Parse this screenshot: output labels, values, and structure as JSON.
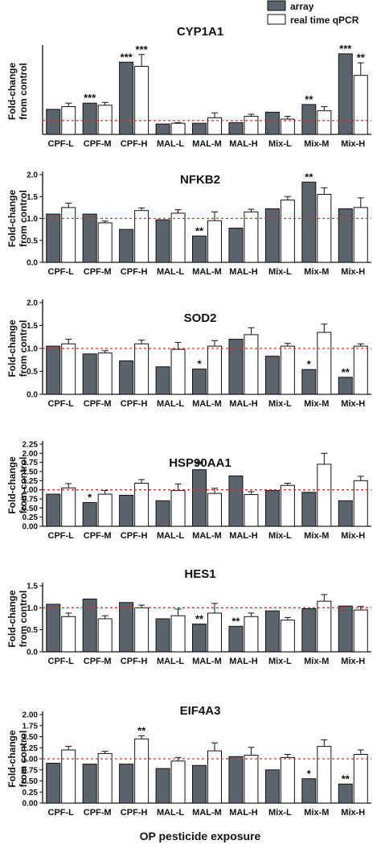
{
  "legend": [
    {
      "name": "array",
      "color": "#5d636d"
    },
    {
      "name": "real time qPCR",
      "color": "#ffffff"
    }
  ],
  "xlabel": "OP pesticide exposure",
  "colors": {
    "array": "#5d636d",
    "qpcr": "#ffffff",
    "reference_line": "#e0302a"
  },
  "chart_data": [
    {
      "type": "bar",
      "title": "CYP1A1",
      "ylabel": "Fold-change from control",
      "categories": [
        "CPF-L",
        "CPF-M",
        "CPF-H",
        "MAL-L",
        "MAL-M",
        "MAL-H",
        "Mix-L",
        "Mix-M",
        "Mix-H"
      ],
      "ylim": [
        0,
        6.2
      ],
      "yticks": [],
      "reference": 1.0,
      "series": [
        {
          "name": "array",
          "values": [
            1.8,
            2.25,
            5.2,
            0.75,
            0.8,
            0.85,
            1.6,
            2.15,
            5.8
          ],
          "errors": [
            0,
            0,
            0,
            0,
            0,
            0,
            0,
            0,
            0
          ],
          "stars": [
            "",
            "***",
            "***",
            "",
            "",
            "",
            "",
            "**",
            "***"
          ]
        },
        {
          "name": "real time qPCR",
          "values": [
            2.0,
            2.1,
            4.9,
            0.8,
            1.2,
            1.3,
            1.1,
            1.7,
            4.25
          ],
          "errors": [
            0.25,
            0.2,
            0.85,
            0.05,
            0.35,
            0.15,
            0.2,
            0.3,
            0.9
          ],
          "stars": [
            "",
            "",
            "***",
            "",
            "",
            "",
            "",
            "",
            "**"
          ]
        }
      ]
    },
    {
      "type": "bar",
      "title": "NFKB2",
      "ylabel": "Fold-change from control",
      "categories": [
        "CPF-L",
        "CPF-M",
        "CPF-H",
        "MAL-L",
        "MAL-M",
        "MAL-H",
        "Mix-L",
        "Mix-M",
        "Mix-H"
      ],
      "ylim": [
        0,
        2.0
      ],
      "yticks": [
        "0.0",
        "0.5",
        "1.0",
        "1.5",
        "2.0"
      ],
      "reference": 1.0,
      "series": [
        {
          "name": "array",
          "values": [
            1.1,
            1.1,
            0.75,
            0.97,
            0.6,
            0.78,
            1.22,
            1.83,
            1.22
          ],
          "errors": [
            0,
            0,
            0,
            0,
            0,
            0,
            0,
            0,
            0
          ],
          "stars": [
            "",
            "",
            "",
            "",
            "**",
            "",
            "",
            "**",
            ""
          ]
        },
        {
          "name": "real time qPCR",
          "values": [
            1.25,
            0.9,
            1.18,
            1.12,
            0.95,
            1.15,
            1.42,
            1.55,
            1.25
          ],
          "errors": [
            0.1,
            0.04,
            0.06,
            0.08,
            0.2,
            0.06,
            0.08,
            0.15,
            0.22
          ],
          "stars": [
            "",
            "",
            "",
            "",
            "",
            "",
            "",
            "",
            ""
          ]
        }
      ]
    },
    {
      "type": "bar",
      "title": "SOD2",
      "ylabel": "Fold-change from control",
      "categories": [
        "CPF-L",
        "CPF-M",
        "CPF-H",
        "MAL-L",
        "MAL-M",
        "MAL-H",
        "Mix-L",
        "Mix-M",
        "Mix-H"
      ],
      "ylim": [
        0,
        2.0
      ],
      "yticks": [
        "0.0",
        "0.5",
        "1.0",
        "1.5",
        "2.0"
      ],
      "reference": 1.0,
      "series": [
        {
          "name": "array",
          "values": [
            1.05,
            0.88,
            0.73,
            0.6,
            0.55,
            1.2,
            0.83,
            0.54,
            0.37
          ],
          "errors": [
            0,
            0,
            0,
            0,
            0,
            0,
            0,
            0,
            0
          ],
          "stars": [
            "",
            "",
            "",
            "",
            "*",
            "",
            "",
            "*",
            "**"
          ]
        },
        {
          "name": "real time qPCR",
          "values": [
            1.1,
            0.9,
            1.1,
            0.98,
            1.05,
            1.3,
            1.05,
            1.35,
            1.05
          ],
          "errors": [
            0.1,
            0.05,
            0.08,
            0.15,
            0.12,
            0.15,
            0.06,
            0.18,
            0.05
          ],
          "stars": [
            "",
            "",
            "",
            "",
            "",
            "",
            "",
            "",
            ""
          ]
        }
      ]
    },
    {
      "type": "bar",
      "title": "HSP90AA1",
      "ylabel": "Fold-change from control",
      "categories": [
        "CPF-L",
        "CPF-M",
        "CPF-H",
        "MAL-L",
        "MAL-M",
        "MAL-H",
        "Mix-L",
        "Mix-M",
        "Mix-H"
      ],
      "ylim": [
        0,
        2.25
      ],
      "yticks": [
        "0.00",
        "0.25",
        "0.50",
        "0.75",
        "1.00",
        "1.25",
        "1.50",
        "1.75",
        "2.00",
        "2.25"
      ],
      "reference": 1.0,
      "series": [
        {
          "name": "array",
          "values": [
            0.88,
            0.65,
            0.85,
            0.7,
            1.55,
            1.38,
            0.98,
            0.93,
            0.7
          ],
          "errors": [
            0,
            0,
            0,
            0,
            0,
            0,
            0,
            0,
            0
          ],
          "stars": [
            "",
            "*",
            "",
            "",
            "**",
            "",
            "",
            "",
            ""
          ]
        },
        {
          "name": "real time qPCR",
          "values": [
            1.05,
            0.88,
            1.18,
            0.98,
            0.9,
            0.87,
            1.12,
            1.7,
            1.25
          ],
          "errors": [
            0.12,
            0.1,
            0.1,
            0.18,
            0.14,
            0.08,
            0.06,
            0.3,
            0.12
          ],
          "stars": [
            "",
            "",
            "",
            "",
            "",
            "",
            "",
            "",
            ""
          ]
        }
      ]
    },
    {
      "type": "bar",
      "title": "HES1",
      "ylabel": "Fold-change from control",
      "categories": [
        "CPF-L",
        "CPF-M",
        "CPF-H",
        "MAL-L",
        "MAL-M",
        "MAL-H",
        "Mix-L",
        "Mix-M",
        "Mix-H"
      ],
      "ylim": [
        0,
        1.5
      ],
      "yticks": [
        "0.0",
        "0.5",
        "1.0",
        "1.5"
      ],
      "reference": 1.0,
      "series": [
        {
          "name": "array",
          "values": [
            1.08,
            1.2,
            1.12,
            0.75,
            0.63,
            0.58,
            0.93,
            0.98,
            1.04
          ],
          "errors": [
            0,
            0,
            0,
            0,
            0,
            0,
            0,
            0,
            0
          ],
          "stars": [
            "",
            "",
            "",
            "",
            "**",
            "**",
            "",
            "",
            ""
          ]
        },
        {
          "name": "real time qPCR",
          "values": [
            0.8,
            0.75,
            1.0,
            0.82,
            0.88,
            0.8,
            0.72,
            1.15,
            0.95
          ],
          "errors": [
            0.08,
            0.07,
            0.06,
            0.15,
            0.22,
            0.08,
            0.06,
            0.15,
            0.08
          ],
          "stars": [
            "",
            "",
            "",
            "",
            "",
            "",
            "",
            "",
            ""
          ]
        }
      ]
    },
    {
      "type": "bar",
      "title": "EIF4A3",
      "ylabel": "Fold-change from control",
      "categories": [
        "CPF-L",
        "CPF-M",
        "CPF-H",
        "MAL-L",
        "MAL-M",
        "MAL-H",
        "Mix-L",
        "Mix-M",
        "Mix-H"
      ],
      "ylim": [
        0,
        2.0
      ],
      "yticks": [
        "0.00",
        "0.25",
        "0.50",
        "0.75",
        "1.00",
        "1.25",
        "1.50",
        "1.75",
        "2.00"
      ],
      "reference": 1.0,
      "series": [
        {
          "name": "array",
          "values": [
            0.9,
            0.88,
            0.88,
            0.78,
            0.85,
            1.05,
            0.75,
            0.55,
            0.43
          ],
          "errors": [
            0,
            0,
            0,
            0,
            0,
            0,
            0,
            0,
            0
          ],
          "stars": [
            "",
            "",
            "",
            "",
            "",
            "",
            "",
            "*",
            "**"
          ]
        },
        {
          "name": "real time qPCR",
          "values": [
            1.2,
            1.12,
            1.45,
            0.95,
            1.18,
            1.08,
            1.03,
            1.28,
            1.1
          ],
          "errors": [
            0.08,
            0.05,
            0.07,
            0.08,
            0.18,
            0.18,
            0.07,
            0.15,
            0.1
          ],
          "stars": [
            "",
            "",
            "**",
            "",
            "",
            "",
            "",
            "",
            ""
          ]
        }
      ]
    }
  ]
}
